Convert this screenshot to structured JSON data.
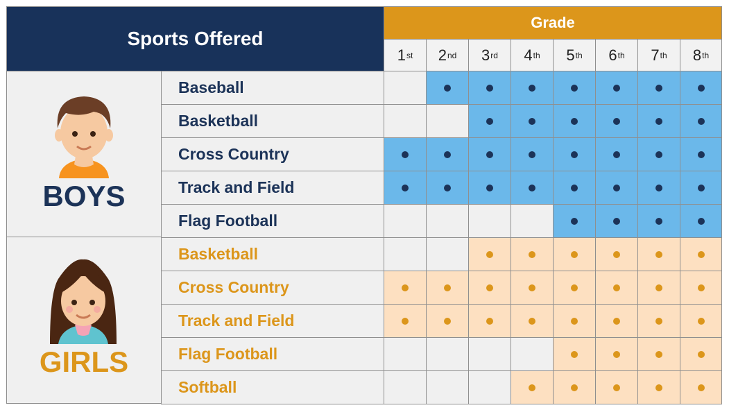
{
  "header": {
    "title": "Sports Offered",
    "grade_label": "Grade"
  },
  "grades": [
    {
      "num": "1",
      "suffix": "st"
    },
    {
      "num": "2",
      "suffix": "nd"
    },
    {
      "num": "3",
      "suffix": "rd"
    },
    {
      "num": "4",
      "suffix": "th"
    },
    {
      "num": "5",
      "suffix": "th"
    },
    {
      "num": "6",
      "suffix": "th"
    },
    {
      "num": "7",
      "suffix": "th"
    },
    {
      "num": "8",
      "suffix": "th"
    }
  ],
  "groups": [
    {
      "label": "BOYS",
      "avatar": "boy-avatar-icon",
      "color": "#1c3358",
      "fill": "#6bb8ea",
      "sports": [
        {
          "name": "Baseball",
          "grades": [
            0,
            1,
            1,
            1,
            1,
            1,
            1,
            1
          ]
        },
        {
          "name": "Basketball",
          "grades": [
            0,
            0,
            1,
            1,
            1,
            1,
            1,
            1
          ]
        },
        {
          "name": "Cross Country",
          "grades": [
            1,
            1,
            1,
            1,
            1,
            1,
            1,
            1
          ]
        },
        {
          "name": "Track and Field",
          "grades": [
            1,
            1,
            1,
            1,
            1,
            1,
            1,
            1
          ]
        },
        {
          "name": "Flag Football",
          "grades": [
            0,
            0,
            0,
            0,
            1,
            1,
            1,
            1
          ]
        }
      ]
    },
    {
      "label": "GIRLS",
      "avatar": "girl-avatar-icon",
      "color": "#dc961b",
      "fill": "#fde0c1",
      "sports": [
        {
          "name": "Basketball",
          "grades": [
            0,
            0,
            1,
            1,
            1,
            1,
            1,
            1
          ]
        },
        {
          "name": "Cross Country",
          "grades": [
            1,
            1,
            1,
            1,
            1,
            1,
            1,
            1
          ]
        },
        {
          "name": "Track and Field",
          "grades": [
            1,
            1,
            1,
            1,
            1,
            1,
            1,
            1
          ]
        },
        {
          "name": "Flag Football",
          "grades": [
            0,
            0,
            0,
            0,
            1,
            1,
            1,
            1
          ]
        },
        {
          "name": "Softball",
          "grades": [
            0,
            0,
            0,
            1,
            1,
            1,
            1,
            1
          ]
        }
      ]
    }
  ]
}
